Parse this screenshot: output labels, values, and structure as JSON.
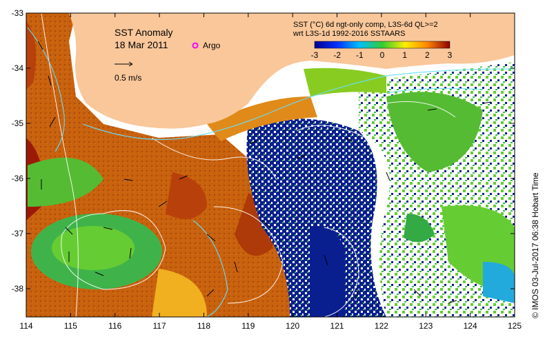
{
  "map": {
    "title": "SST Anomaly",
    "date": "18 Mar 2011",
    "argo_label": "Argo",
    "vector_scale_label": "0.5 m/s",
    "product_line1": "SST (°C) 6d ngt-only comp, L3S-6d QL>=2",
    "product_line2": "wrt L3S-1d 1992-2016 SSTAARS",
    "credit": "© IMOS 03-Jul-2017 06:38 Hobart Time",
    "x_ticks": [
      "114",
      "115",
      "116",
      "117",
      "118",
      "119",
      "120",
      "121",
      "122",
      "123",
      "124",
      "125"
    ],
    "y_ticks": [
      "-33",
      "-34",
      "-35",
      "-36",
      "-37",
      "-38"
    ],
    "colorbar_ticks": [
      "-3",
      "-2",
      "-1",
      "0",
      "1",
      "2",
      "3"
    ],
    "colors": {
      "land": "#f9c79a",
      "argo": "#ff00ff",
      "cold": "#0a1f8f",
      "warm": "#c9620e",
      "hot": "#9c1a05",
      "green": "#55cc33"
    }
  }
}
